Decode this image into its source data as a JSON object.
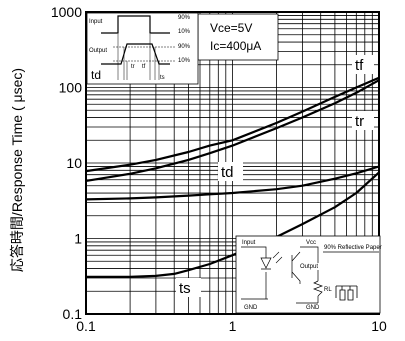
{
  "chart_data": {
    "type": "line",
    "title": "",
    "xlabel": "",
    "ylabel": "応答時間/Response Time ( μsec)",
    "x_scale": "log",
    "y_scale": "log",
    "xlim": [
      0.1,
      10
    ],
    "ylim": [
      0.1,
      1000
    ],
    "x_ticks": [
      "0.1",
      "1",
      "10"
    ],
    "y_ticks": [
      "1000",
      "100",
      "10",
      "1",
      "0.1"
    ],
    "grid": true,
    "conditions": [
      "Vce=5V",
      "Ic=400μA"
    ],
    "series": [
      {
        "name": "tf",
        "x": [
          0.1,
          0.2,
          0.3,
          0.5,
          0.7,
          1,
          2,
          3,
          5,
          7,
          10
        ],
        "y": [
          7.8,
          9.5,
          11,
          14,
          17,
          20,
          34,
          48,
          75,
          100,
          135
        ]
      },
      {
        "name": "tr",
        "x": [
          0.1,
          0.2,
          0.3,
          0.5,
          0.7,
          1,
          2,
          3,
          5,
          7,
          10
        ],
        "y": [
          5.8,
          7.2,
          8.5,
          11,
          13.5,
          17,
          29,
          40,
          62,
          85,
          125
        ]
      },
      {
        "name": "td",
        "x": [
          0.1,
          0.2,
          0.3,
          0.5,
          0.7,
          1,
          2,
          3,
          5,
          7,
          10
        ],
        "y": [
          3.3,
          3.4,
          3.5,
          3.7,
          3.85,
          4.0,
          4.5,
          5.0,
          6.2,
          7.3,
          9.0
        ]
      },
      {
        "name": "ts",
        "x": [
          0.1,
          0.2,
          0.3,
          0.4,
          0.5,
          0.7,
          1,
          2,
          3,
          5,
          7,
          10
        ],
        "y": [
          0.31,
          0.31,
          0.32,
          0.34,
          0.38,
          0.46,
          0.6,
          1.05,
          1.55,
          2.6,
          4.0,
          7.5
        ]
      }
    ],
    "timing_diagram": {
      "input_label": "Input",
      "output_label": "Output",
      "levels": [
        "90%",
        "10%",
        "90%",
        "10%"
      ],
      "labels": [
        "td",
        "tr",
        "tf",
        "ts"
      ]
    },
    "circuit_inset": {
      "input_label": "Input",
      "vcc_label": "Vcc",
      "output_label": "Output",
      "rl_label": "RL",
      "gnd_label": "GND",
      "gnd_label_2": "GND",
      "paper_label": "90% Reflective Paper"
    }
  }
}
